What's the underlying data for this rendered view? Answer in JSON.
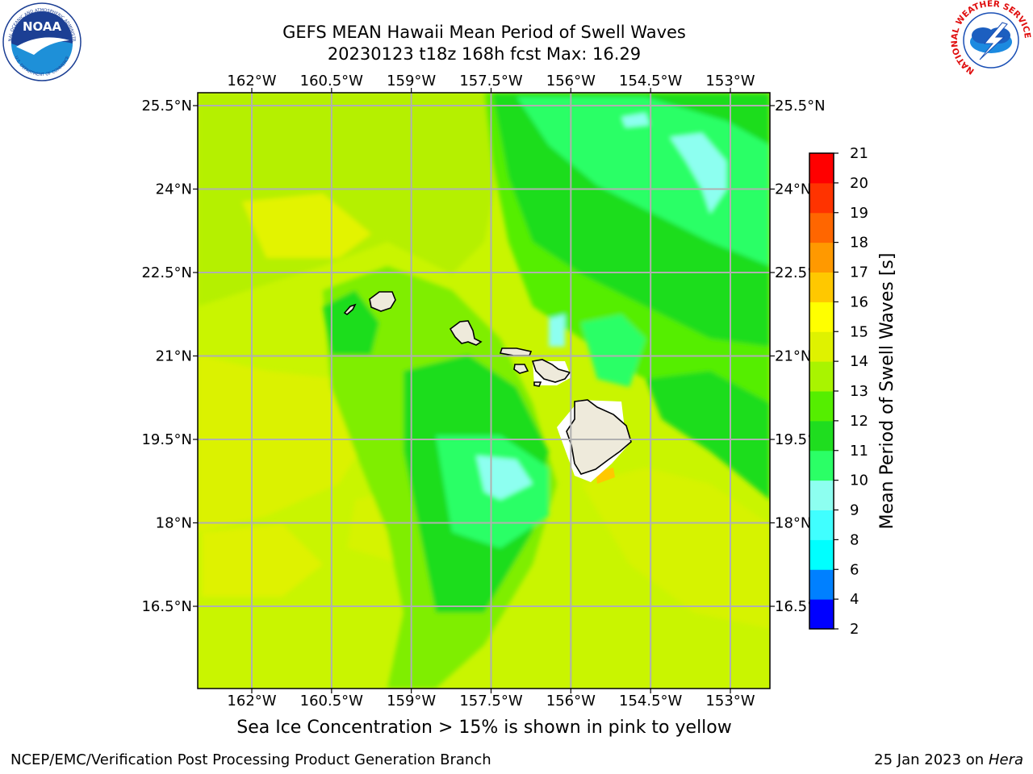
{
  "title": {
    "line1": "GEFS MEAN Hawaii Mean Period of Swell Waves",
    "line2": "20230123 t18z 168h fcst   Max: 16.29"
  },
  "map": {
    "lon_ticks": [
      "162°W",
      "160.5°W",
      "159°W",
      "157.5°W",
      "156°W",
      "154.5°W",
      "153°W"
    ],
    "lat_ticks": [
      "25.5°N",
      "24°N",
      "22.5°N",
      "21°N",
      "19.5°N",
      "18°N",
      "16.5°N"
    ],
    "lon_values": [
      -162,
      -160.5,
      -159,
      -157.5,
      -156,
      -154.5,
      -153
    ],
    "lat_values": [
      25.5,
      24,
      22.5,
      21,
      19.5,
      18,
      16.5
    ],
    "grid": true,
    "land_color": "#eeeadb",
    "background_field_color": "#b8f500"
  },
  "colorbar": {
    "label": "Mean Period of Swell Waves [s]",
    "levels": [
      "2",
      "4",
      "6",
      "8",
      "9",
      "10",
      "11",
      "12",
      "13",
      "14",
      "15",
      "16",
      "17",
      "18",
      "19",
      "20",
      "21"
    ],
    "colors": [
      "#0000ff",
      "#0080ff",
      "#00ffff",
      "#40ffff",
      "#8dfff0",
      "#2bff66",
      "#1fdd1f",
      "#55ee00",
      "#a9f400",
      "#dff200",
      "#ffff00",
      "#ffc800",
      "#ff9900",
      "#ff6600",
      "#ff3300",
      "#ff0000"
    ]
  },
  "icons": {
    "left_logo": "noaa-logo",
    "right_logo": "nws-logo"
  },
  "logos": {
    "noaa_text": "NOAA",
    "noaa_ring_top": "NATIONAL OCEANIC AND ATMOSPHERIC ADMINISTRATION",
    "noaa_ring_bottom": "U.S. DEPARTMENT OF COMMERCE",
    "nws_ring": "NATIONAL WEATHER SERVICE"
  },
  "footer": {
    "note": "Sea Ice Concentration > 15% is shown in pink to yellow",
    "credit": "NCEP/EMC/Verification Post Processing Product Generation Branch",
    "date": "25 Jan 2023 on ",
    "host": "Hera"
  }
}
